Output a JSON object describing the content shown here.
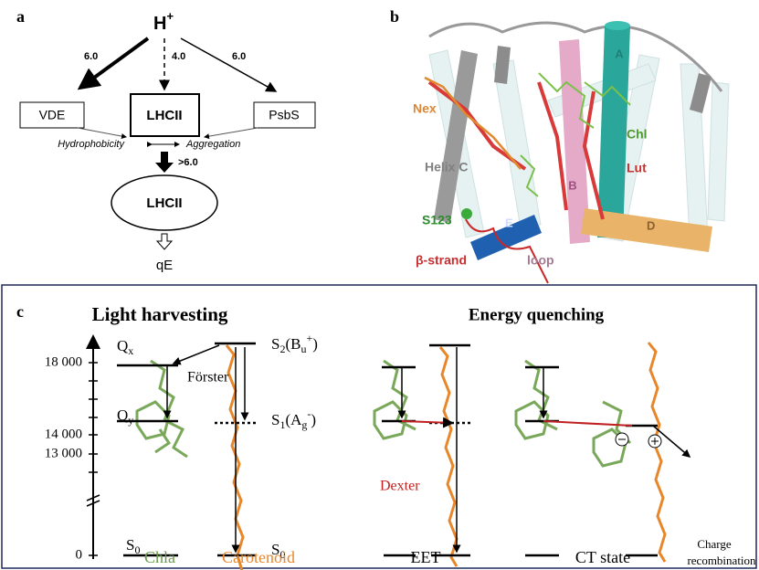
{
  "panel_a": {
    "letter": "a",
    "proton": {
      "main": "H",
      "sup": "+"
    },
    "arrows": {
      "left": "6.0",
      "middle": "4.0",
      "right": "6.0",
      "down": ">6.0"
    },
    "boxes": {
      "left": "VDE",
      "center": "LHCII",
      "right": "PsbS"
    },
    "link": {
      "left": "Hydrophobicity",
      "right": "Aggregation"
    },
    "ellipse": "LHCII",
    "result": "qE"
  },
  "panel_b": {
    "letter": "b",
    "labels": {
      "helix_a": "A",
      "nex": "Nex",
      "chl": "Chl",
      "helix_c": "Helix C",
      "lut": "Lut",
      "helix_b": "B",
      "s123": "S123",
      "helix_e": "E",
      "helix_d": "D",
      "strand": "β-strand",
      "loop": "loop"
    }
  },
  "panel_c": {
    "letter": "c",
    "titles": {
      "left": "Light harvesting",
      "right": "Energy quenching"
    },
    "axis_labels": [
      "18 000",
      "14 000",
      "13 000",
      "0"
    ],
    "levels": {
      "qx": {
        "main": "Q",
        "sub": "x"
      },
      "qy": {
        "main": "Q",
        "sub": "y"
      },
      "s0_chl": {
        "main": "S",
        "sub": "0"
      },
      "s2": {
        "parts": [
          "S",
          "2",
          "(B",
          "u",
          "+",
          ")"
        ]
      },
      "s1": {
        "parts": [
          "S",
          "1",
          "(A",
          "g",
          "-",
          ")"
        ]
      },
      "s0_car": {
        "main": "S",
        "sub": "0"
      }
    },
    "transfers": {
      "forster": "Förster",
      "dexter": "Dexter",
      "recombination": [
        "Charge",
        "recombination"
      ]
    },
    "captions": {
      "chla": "Chla",
      "carotenoid": "Carotenoid",
      "eet": "EET",
      "ct": "CT state"
    }
  }
}
